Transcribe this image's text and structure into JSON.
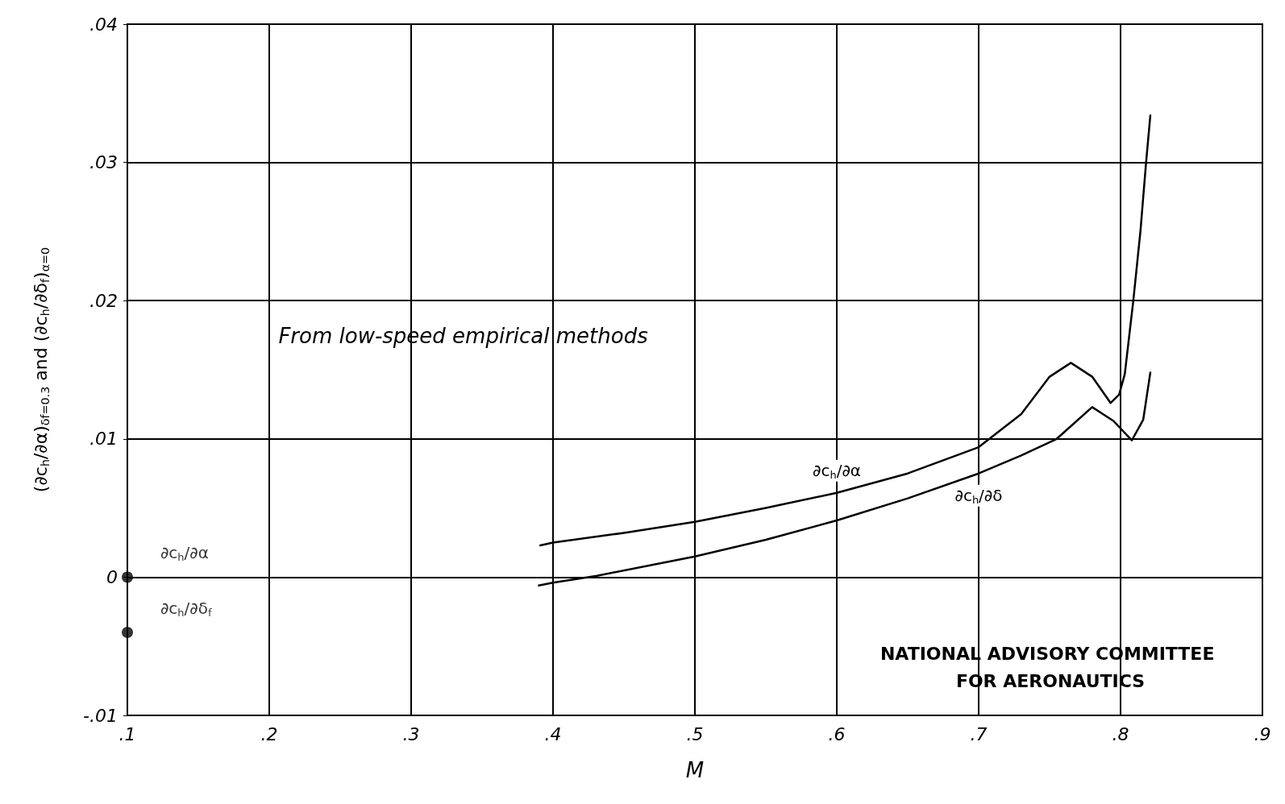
{
  "chart_data": {
    "type": "line",
    "xlabel": "M",
    "ylabel": "(∂c$_{h}$/∂α)$_{δf=0.3}$ and (∂c$_{h}$/∂δ$_{f}$)$_{α=0}$",
    "xlim": [
      0.1,
      0.9
    ],
    "xticks": [
      {
        "value": 0.1,
        "label": ".1"
      },
      {
        "value": 0.2,
        "label": ".2"
      },
      {
        "value": 0.3,
        "label": ".3"
      },
      {
        "value": 0.4,
        "label": ".4"
      },
      {
        "value": 0.5,
        "label": ".5"
      },
      {
        "value": 0.6,
        "label": ".6"
      },
      {
        "value": 0.7,
        "label": ".7"
      },
      {
        "value": 0.8,
        "label": ".8"
      },
      {
        "value": 0.9,
        "label": ".9"
      }
    ],
    "ylim": [
      -0.01,
      0.04
    ],
    "yticks": [
      {
        "value": -0.01,
        "label": "-.01"
      },
      0,
      {
        "value": 0.01,
        "label": ".01"
      },
      {
        "value": 0.02,
        "label": ".02"
      },
      {
        "value": 0.03,
        "label": ".03"
      },
      {
        "value": 0.04,
        "label": ".04"
      }
    ],
    "grid": true,
    "series": [
      {
        "name": "∂c$_{h}$/∂α",
        "color": "#000000",
        "marker": "none",
        "x": [
          0.391,
          0.4,
          0.45,
          0.5,
          0.55,
          0.6,
          0.65,
          0.7,
          0.73,
          0.75,
          0.765,
          0.78,
          0.793,
          0.799,
          0.803,
          0.809,
          0.814,
          0.818,
          0.821
        ],
        "values": [
          0.0023,
          0.0025,
          0.0032,
          0.004,
          0.005,
          0.0061,
          0.0075,
          0.0094,
          0.0118,
          0.0145,
          0.0155,
          0.0145,
          0.0126,
          0.0132,
          0.0147,
          0.02,
          0.025,
          0.03,
          0.0334
        ]
      },
      {
        "name": "∂c$_{h}$/∂δ",
        "color": "#000000",
        "marker": "none",
        "x": [
          0.39,
          0.4,
          0.431,
          0.5,
          0.55,
          0.6,
          0.65,
          0.7,
          0.73,
          0.755,
          0.78,
          0.795,
          0.808,
          0.816,
          0.821
        ],
        "values": [
          -0.0006,
          -0.0004,
          0.0001,
          0.0015,
          0.0027,
          0.0041,
          0.0057,
          0.0075,
          0.0088,
          0.01,
          0.0123,
          0.0113,
          0.0099,
          0.0114,
          0.0148
        ]
      },
      {
        "name": "∂c$_{h}$/∂α",
        "type": "scatter",
        "color": "#000000",
        "marker": "circle",
        "x": [
          0.1
        ],
        "values": [
          0
        ]
      },
      {
        "name": "∂c$_{h}$/∂δ$_{f}$",
        "type": "scatter",
        "color": "#000000",
        "marker": "circle",
        "x": [
          0.1
        ],
        "values": [
          -0.004
        ]
      }
    ],
    "annotations": [
      "From low-speed empirical methods",
      "NATIONAL ADVISORY COMMITTEE FOR AERONAUTICS"
    ]
  }
}
